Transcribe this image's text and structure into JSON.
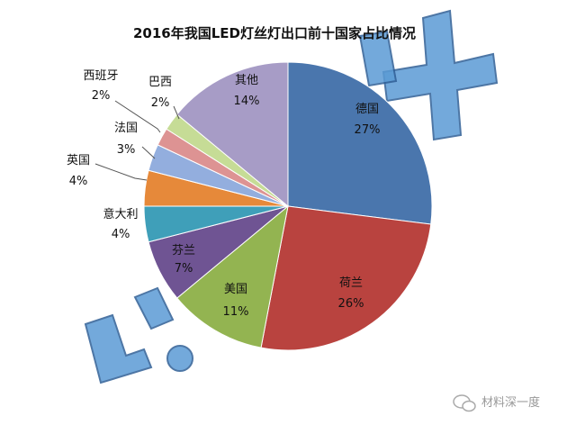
{
  "chart_data": {
    "type": "pie",
    "title": "2016年我国LED灯丝灯出口前十国家占比情况",
    "slices": [
      {
        "label": "德国",
        "value": 27,
        "display": "27%",
        "color": "#4a76ad"
      },
      {
        "label": "荷兰",
        "value": 26,
        "display": "26%",
        "color": "#b9433f"
      },
      {
        "label": "美国",
        "value": 11,
        "display": "11%",
        "color": "#93b451"
      },
      {
        "label": "芬兰",
        "value": 7,
        "display": "7%",
        "color": "#6f5493"
      },
      {
        "label": "意大利",
        "value": 4,
        "display": "4%",
        "color": "#3f9fb9"
      },
      {
        "label": "英国",
        "value": 4,
        "display": "4%",
        "color": "#e6893a"
      },
      {
        "label": "法国",
        "value": 3,
        "display": "3%",
        "color": "#93aede"
      },
      {
        "label": "西班牙",
        "value": 2,
        "display": "2%",
        "color": "#dd9393"
      },
      {
        "label": "巴西",
        "value": 2,
        "display": "2%",
        "color": "#c6dc96"
      },
      {
        "label": "其他",
        "value": 14,
        "display": "14%",
        "color": "#a79cc6"
      }
    ]
  },
  "footer": {
    "text": "材料深一度"
  }
}
